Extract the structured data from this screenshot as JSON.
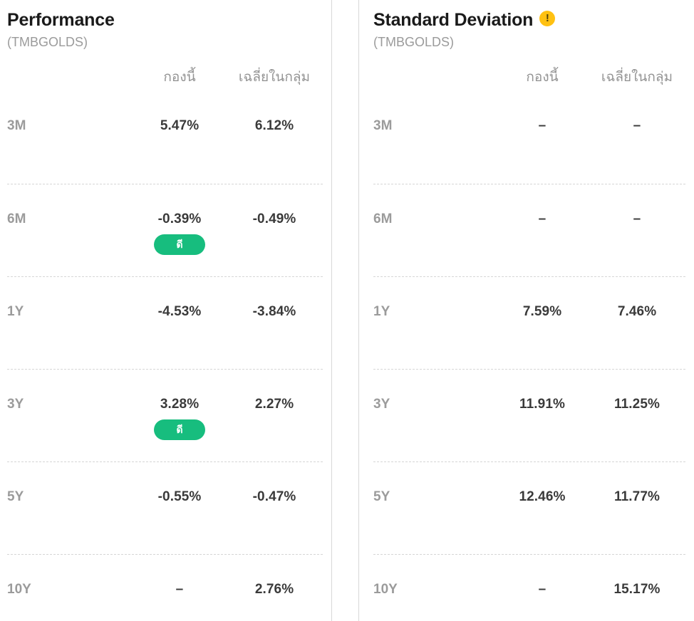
{
  "icons": {
    "warning_glyph": "!"
  },
  "colors": {
    "badge_green": "#17bd7e",
    "warning_yellow": "#ffc112",
    "title_text": "#1a1a1a",
    "muted_text": "#9b9b9b",
    "value_text": "#3a3a3a",
    "divider": "#d8d8d8",
    "dashed_separator": "#d6d6d6"
  },
  "panels": [
    {
      "id": "performance",
      "title": "Performance",
      "subtitle": "(TMBGOLDS)",
      "has_warning": false,
      "columns": [
        "กองนี้",
        "เฉลี่ยในกลุ่ม"
      ],
      "rows": [
        {
          "period": "3M",
          "fund": "5.47%",
          "category_avg": "6.12%",
          "badge": null
        },
        {
          "period": "6M",
          "fund": "-0.39%",
          "category_avg": "-0.49%",
          "badge": "ดี"
        },
        {
          "period": "1Y",
          "fund": "-4.53%",
          "category_avg": "-3.84%",
          "badge": null
        },
        {
          "period": "3Y",
          "fund": "3.28%",
          "category_avg": "2.27%",
          "badge": "ดี"
        },
        {
          "period": "5Y",
          "fund": "-0.55%",
          "category_avg": "-0.47%",
          "badge": null
        },
        {
          "period": "10Y",
          "fund": "–",
          "category_avg": "2.76%",
          "badge": null
        }
      ]
    },
    {
      "id": "standard-deviation",
      "title": "Standard Deviation",
      "subtitle": "(TMBGOLDS)",
      "has_warning": true,
      "columns": [
        "กองนี้",
        "เฉลี่ยในกลุ่ม"
      ],
      "rows": [
        {
          "period": "3M",
          "fund": "–",
          "category_avg": "–",
          "badge": null
        },
        {
          "period": "6M",
          "fund": "–",
          "category_avg": "–",
          "badge": null
        },
        {
          "period": "1Y",
          "fund": "7.59%",
          "category_avg": "7.46%",
          "badge": null
        },
        {
          "period": "3Y",
          "fund": "11.91%",
          "category_avg": "11.25%",
          "badge": null
        },
        {
          "period": "5Y",
          "fund": "12.46%",
          "category_avg": "11.77%",
          "badge": null
        },
        {
          "period": "10Y",
          "fund": "–",
          "category_avg": "15.17%",
          "badge": null
        }
      ]
    }
  ]
}
